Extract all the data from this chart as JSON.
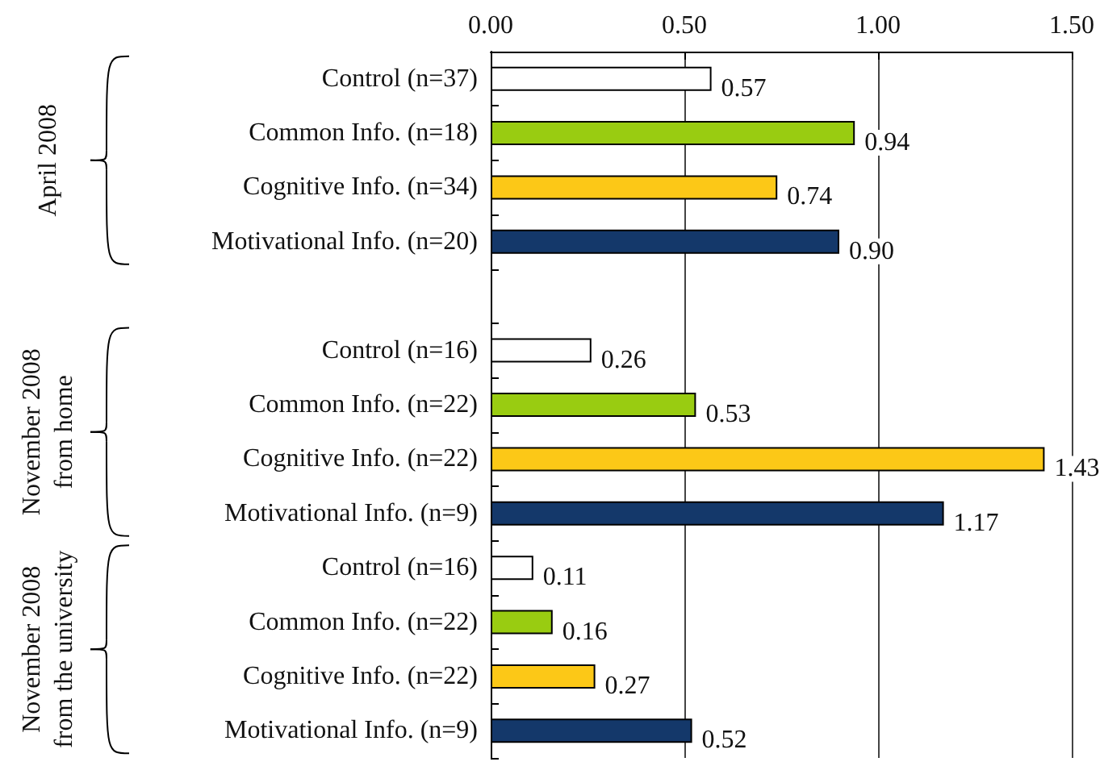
{
  "chart_data": {
    "type": "bar",
    "orientation": "horizontal",
    "categories": [
      "Control (n=37)",
      "Common Info. (n=18)",
      "Cognitive Info. (n=34)",
      "Motivational Info. (n=20)",
      null,
      "Control (n=16)",
      "Common Info. (n=22)",
      "Cognitive Info. (n=22)",
      "Motivational Info. (n=9)",
      "Control (n=16)",
      "Common Info. (n=22)",
      "Cognitive Info. (n=22)",
      "Motivational Info. (n=9)"
    ],
    "values": [
      0.57,
      0.94,
      0.74,
      0.9,
      null,
      0.26,
      0.53,
      1.43,
      1.17,
      0.11,
      0.16,
      0.27,
      0.52
    ],
    "value_labels": [
      "0.57",
      "0.94",
      "0.74",
      "0.90",
      null,
      "0.26",
      "0.53",
      "1.43",
      "1.17",
      "0.11",
      "0.16",
      "0.27",
      "0.52"
    ],
    "colors": [
      "#ffffff",
      "#99cc11",
      "#fcc817",
      "#14386a",
      null,
      "#ffffff",
      "#99cc11",
      "#fcc817",
      "#14386a",
      "#ffffff",
      "#99cc11",
      "#fcc817",
      "#14386a"
    ],
    "xlim": [
      0,
      1.5
    ],
    "xticks": [
      {
        "value": 0,
        "label": "0.00"
      },
      {
        "value": 0.5,
        "label": "0.50"
      },
      {
        "value": 1,
        "label": "1.00"
      },
      {
        "value": 1.5,
        "label": "1.50"
      }
    ],
    "grid": "x",
    "annotations": [
      "April 2008",
      "November 2008\nfrom home",
      "November 2008\nfrom the university"
    ]
  }
}
